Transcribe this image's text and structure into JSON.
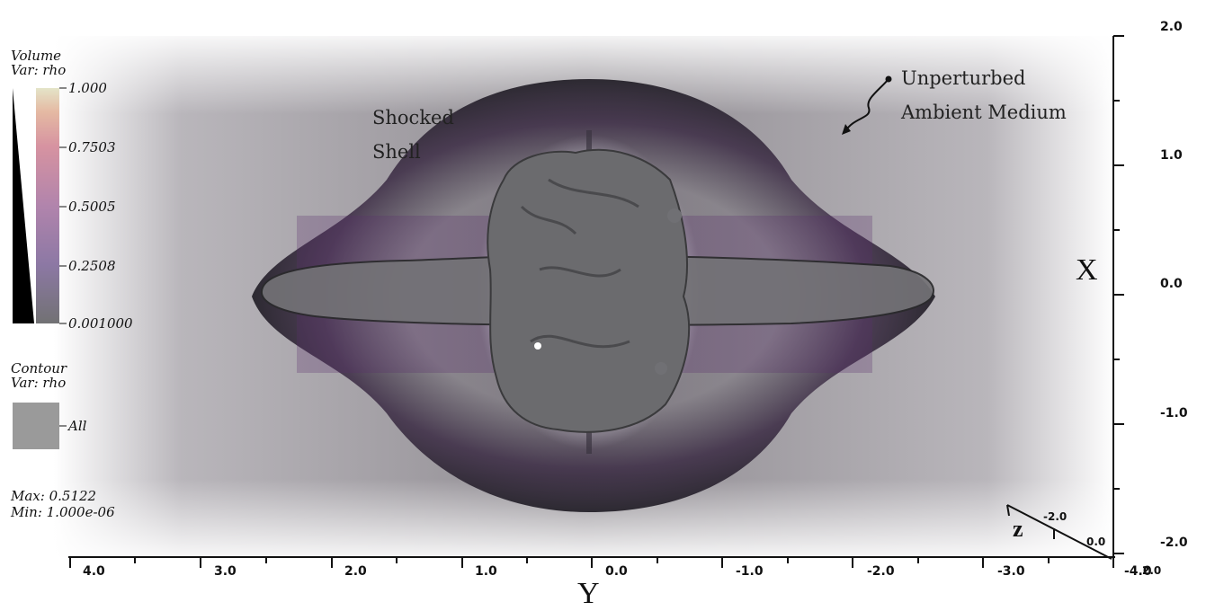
{
  "volume_legend": {
    "title": "Volume",
    "var": "Var: rho",
    "ticks": [
      "1.000",
      "0.7503",
      "0.5005",
      "0.2508",
      "0.001000"
    ]
  },
  "contour_legend": {
    "title": "Contour",
    "var": "Var: rho",
    "label": "All",
    "swatch_color": "#9a9a9a"
  },
  "stats": {
    "max": "Max:  0.5122",
    "min": "Min:  1.000e-06"
  },
  "annotations": {
    "shocked_line1": "Shocked",
    "shocked_line2": "Shell",
    "ambient_line1": "Unperturbed",
    "ambient_line2": "Ambient Medium"
  },
  "x_axis": {
    "title": "Y",
    "ticks": [
      "4.0",
      "3.0",
      "2.0",
      "1.0",
      "0.0",
      "-1.0",
      "-2.0",
      "-3.0",
      "-4.0"
    ]
  },
  "y_axis": {
    "title": "X",
    "ticks": [
      "2.0",
      "1.0",
      "0.0",
      "-1.0",
      "-2.0"
    ]
  },
  "z_axis": {
    "title": "z",
    "ticks": [
      "-2.0",
      "0.0",
      "2.0"
    ]
  },
  "colors": {
    "shell": "#2a2630",
    "purple": "#5a2f6a",
    "isosurface": "#6e6e70",
    "background_haze": "#a7a4aa"
  }
}
